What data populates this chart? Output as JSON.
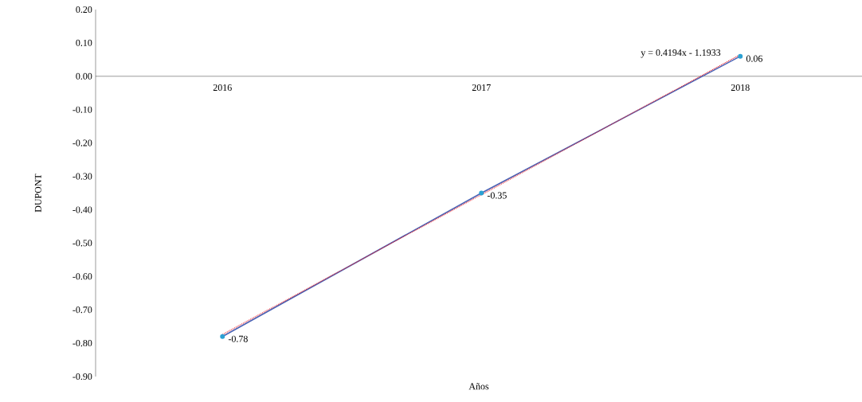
{
  "chart_data": {
    "type": "line",
    "xlabel": "Años",
    "ylabel": "DUPONT",
    "categories": [
      "2016",
      "2017",
      "2018"
    ],
    "series": [
      {
        "color": "#4a63b5",
        "values": [
          -0.78,
          -0.35,
          0.06
        ],
        "value_labels": [
          "-0.78",
          "-0.35",
          "0.06"
        ],
        "marker": "circle",
        "line_style": "solid"
      },
      {
        "type": "line",
        "color": "#e8202a",
        "values": [
          -0.774,
          -0.355,
          0.065
        ],
        "marker": "none",
        "line_style": "dotted"
      }
    ],
    "ylim": [
      -0.9,
      0.2
    ],
    "yticks": [
      {
        "value": 0.2,
        "label": "0.20"
      },
      {
        "value": 0.1,
        "label": "0.10"
      },
      {
        "value": 0.0,
        "label": "0.00"
      },
      {
        "value": -0.1,
        "label": "-0.10"
      },
      {
        "value": -0.2,
        "label": "-0.20"
      },
      {
        "value": -0.3,
        "label": "-0.30"
      },
      {
        "value": -0.4,
        "label": "-0.40"
      },
      {
        "value": -0.5,
        "label": "-0.50"
      },
      {
        "value": -0.6,
        "label": "-0.60"
      },
      {
        "value": -0.7,
        "label": "-0.70"
      },
      {
        "value": -0.8,
        "label": "-0.80"
      },
      {
        "value": -0.9,
        "label": "-0.90"
      }
    ],
    "annotations": [
      "y = 0.4194x - 1.1933"
    ],
    "grid": false
  }
}
